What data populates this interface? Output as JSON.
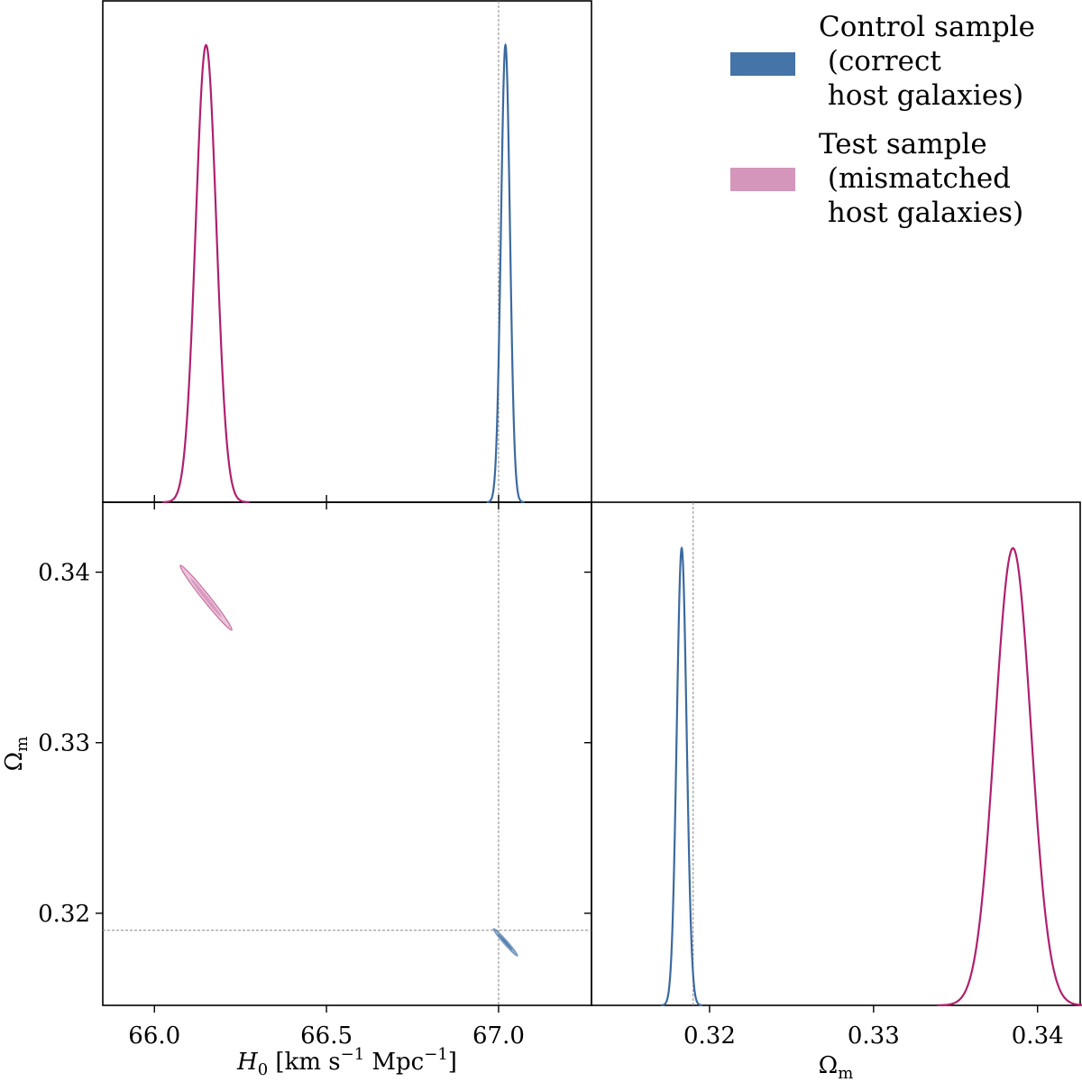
{
  "chart_data": {
    "type": "corner-plot",
    "parameters": [
      "H0",
      "Omega_m"
    ],
    "series": [
      {
        "name": "Control sample (correct host galaxies)",
        "legend_lines": [
          "Control sample",
          " (correct",
          " host galaxies)"
        ],
        "color_line": "#3b6aa0",
        "color_fill": "#4474a8",
        "H0_mean": 67.02,
        "H0_sigma": 0.013,
        "Om_mean": 0.3183,
        "Om_sigma": 0.0003,
        "ellipse_half_width_H0": 0.035,
        "ellipse_half_height_Om": 0.0008
      },
      {
        "name": "Test sample (mismatched host galaxies)",
        "legend_lines": [
          "Test sample",
          " (mismatched",
          " host galaxies)"
        ],
        "color_line": "#b0206e",
        "color_fill": "#d596bb",
        "H0_mean": 66.15,
        "H0_sigma": 0.03,
        "Om_mean": 0.3385,
        "Om_sigma": 0.0011,
        "ellipse_half_width_H0": 0.075,
        "ellipse_half_height_Om": 0.0019
      }
    ],
    "reference": {
      "H0": 67.0,
      "Omega_m": 0.319
    },
    "H0_axis": {
      "range": [
        65.85,
        67.27
      ],
      "ticks": [
        66.0,
        66.5,
        67.0
      ],
      "tick_labels": [
        "66.0",
        "66.5",
        "67.0"
      ]
    },
    "Om_axis_2d": {
      "range": [
        0.3146,
        0.3441
      ],
      "ticks": [
        0.32,
        0.33,
        0.34
      ],
      "tick_labels": [
        "0.32",
        "0.33",
        "0.34"
      ]
    },
    "Om_axis_1d": {
      "range": [
        0.3128,
        0.3426
      ],
      "ticks": [
        0.32,
        0.33,
        0.34
      ],
      "tick_labels": [
        "0.32",
        "0.33",
        "0.34"
      ]
    },
    "xlabel_H0_parts": [
      "H",
      "0",
      " [km s",
      "−1",
      " Mpc",
      "−1",
      "]"
    ],
    "xlabel_Om_parts": [
      "Ω",
      "m"
    ],
    "ylabel_Om_parts": [
      "Ω",
      "m"
    ]
  }
}
